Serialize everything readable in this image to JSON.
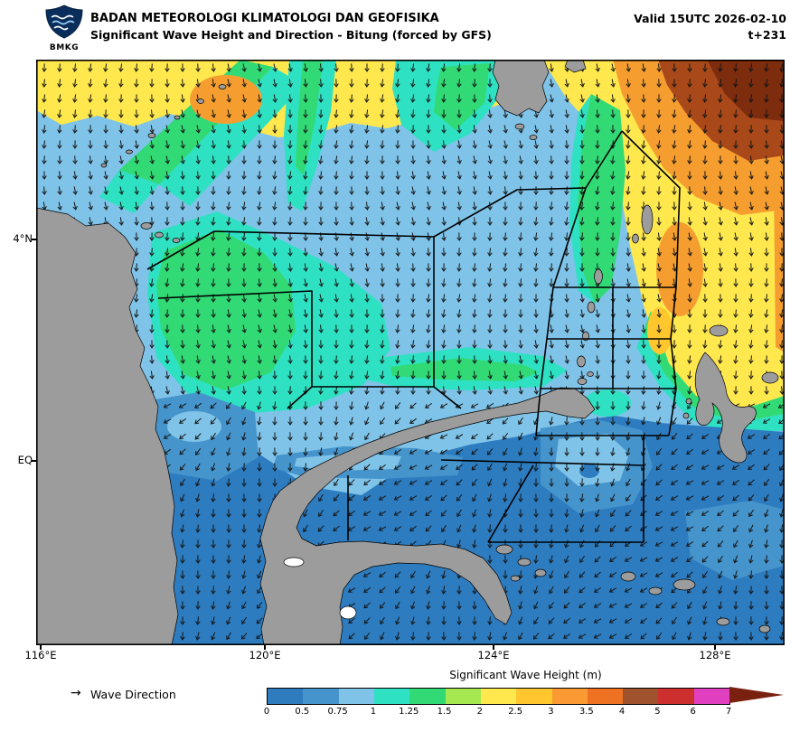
{
  "header": {
    "logo_text": "BMKG",
    "agency": "BADAN METEOROLOGI KLIMATOLOGI DAN GEOFISIKA",
    "product": "Significant Wave Height and Direction - Bitung (forced by GFS)",
    "valid_line": "Valid 15UTC 2026-02-10",
    "tau_line": "t+231"
  },
  "map": {
    "lat_labels": [
      "4°N",
      "EQ"
    ],
    "lon_labels": [
      "116°E",
      "120°E",
      "124°E",
      "128°E"
    ],
    "land_color": "#9c9c9c",
    "sea_base_color": "#7fc3e8"
  },
  "legend": {
    "direction_symbol": "→",
    "direction_label": "Wave Direction",
    "colorbar_title": "Significant Wave Height (m)",
    "tick_labels": [
      "0",
      "0.5",
      "0.75",
      "1",
      "1.25",
      "1.5",
      "2",
      "2.5",
      "3",
      "3.5",
      "4",
      "5",
      "6",
      "7"
    ],
    "segment_colors": [
      "#2e7bbe",
      "#4694cc",
      "#7fc3e8",
      "#2fe1c3",
      "#31da75",
      "#a6e84f",
      "#ffe84d",
      "#ffc62e",
      "#fb9a32",
      "#ef7222",
      "#a0522d",
      "#cd2f2f",
      "#e040c0"
    ],
    "overflow_color": "#7a2010"
  }
}
